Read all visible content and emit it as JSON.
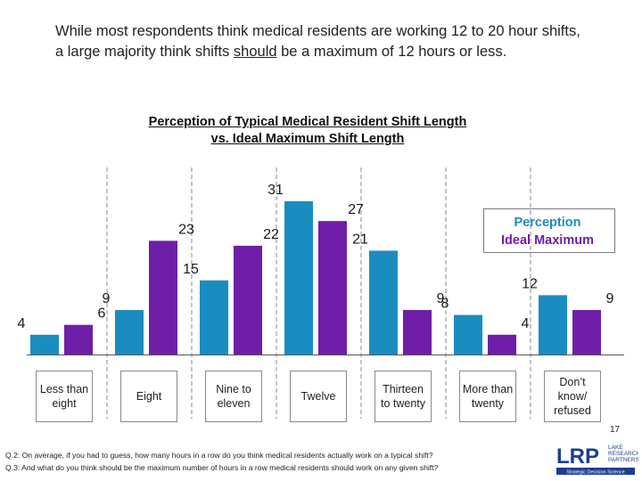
{
  "headline": {
    "before": "While most respondents think medical residents are working 12 to 20 hour shifts, a large majority think shifts ",
    "emphasis": "should",
    "after": " be a maximum of 12 hours or less."
  },
  "chart_data": {
    "type": "bar",
    "title_line1": "Perception of Typical Medical Resident Shift Length",
    "title_line2": "vs. Ideal Maximum Shift Length",
    "categories": [
      "Less than eight",
      "Eight",
      "Nine to eleven",
      "Twelve",
      "Thirteen to twenty",
      "More than twenty",
      "Don’t know/ refused"
    ],
    "series": [
      {
        "name": "Perception",
        "color": "#1a8dc0",
        "values": [
          4,
          9,
          15,
          31,
          21,
          8,
          12
        ]
      },
      {
        "name": "Ideal Maximum",
        "color": "#6f1ea8",
        "values": [
          6,
          23,
          22,
          27,
          9,
          4,
          9
        ]
      }
    ],
    "ylim": [
      0,
      35
    ],
    "legend_position": "top-right",
    "grid": false
  },
  "footnotes": {
    "q2": "Q.2: On average, if you had to guess, how many hours in a row do you think medical residents actually work on a typical shift?",
    "q3": "Q.3: And what do you think should be the maximum number of hours in a row medical residents should work on any given shift?"
  },
  "page_number": "17",
  "logo": {
    "wordmark": "LRP",
    "subtext_line1": "LAKE",
    "subtext_line2": "RESEARCH",
    "subtext_line3": "PARTNERS",
    "tagline": "Strategic Decision Science",
    "color": "#1b3f8f"
  }
}
